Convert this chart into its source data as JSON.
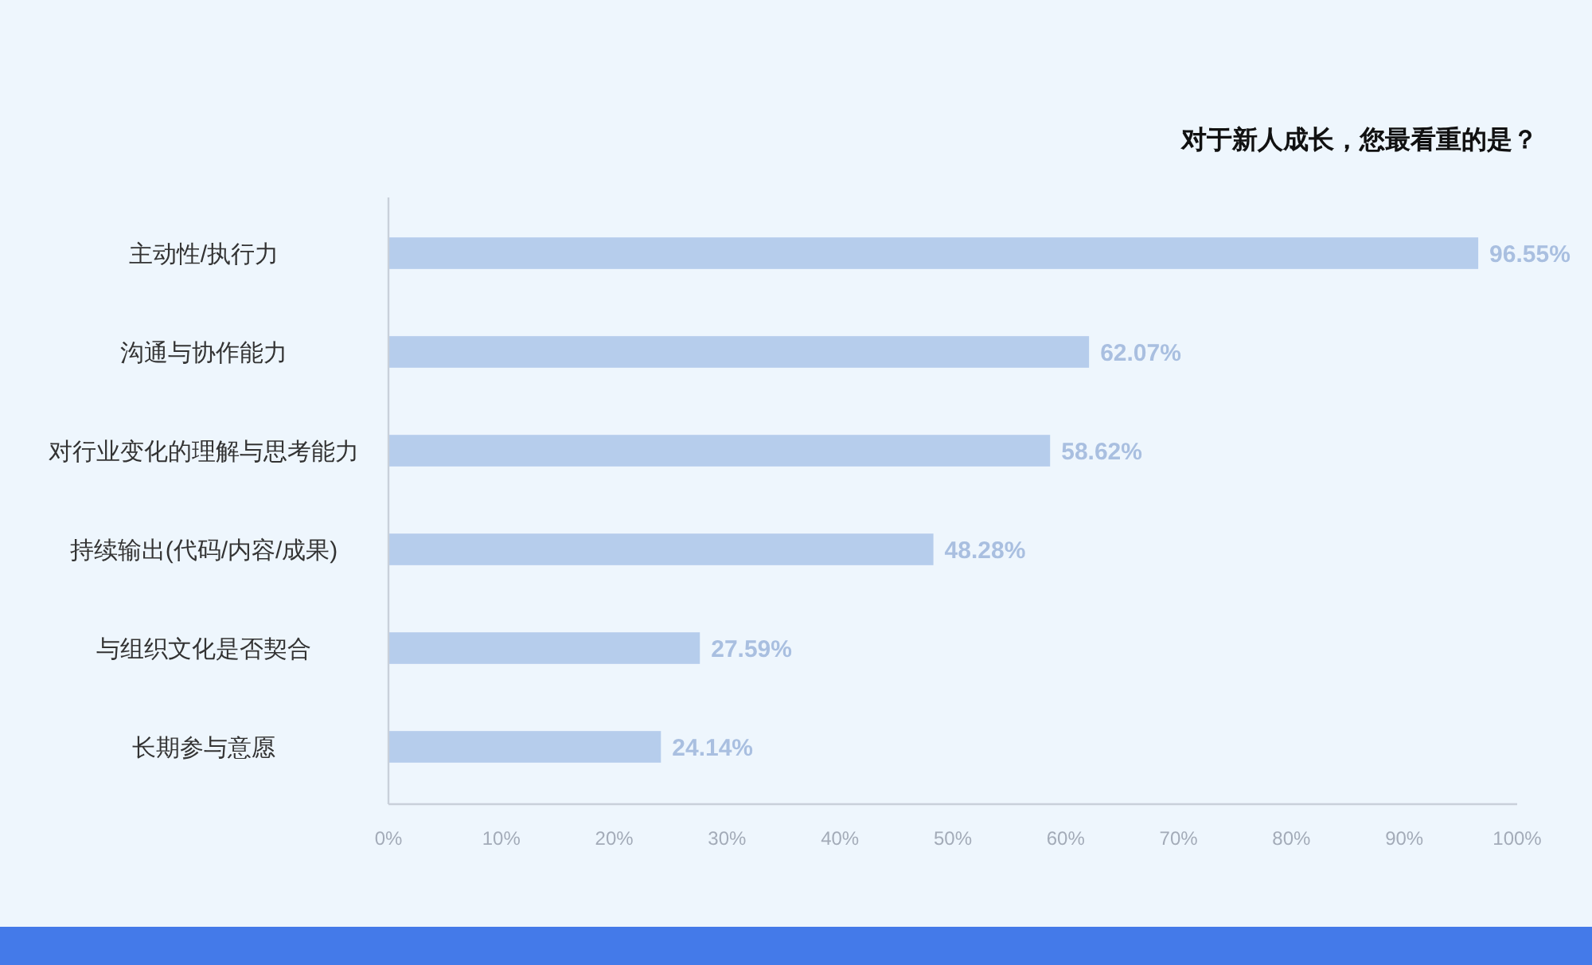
{
  "chart_data": {
    "type": "bar",
    "title": "对于新人成长，您最看重的是？",
    "orientation": "horizontal",
    "categories": [
      "主动性/执行力",
      "沟通与协作能力",
      "对行业变化的理解与思考能力",
      "持续输出(代码/内容/成果)",
      "与组织文化是否契合",
      "长期参与意愿"
    ],
    "values": [
      96.55,
      62.07,
      58.62,
      48.28,
      27.59,
      24.14
    ],
    "color": "#b6cdec",
    "value_labels": [
      "96.55%",
      "62.07%",
      "58.62%",
      "48.28%",
      "27.59%",
      "24.14%"
    ],
    "xlim": [
      0,
      100
    ],
    "xticks": [
      {
        "value": 0,
        "label": "0%"
      },
      {
        "value": 10,
        "label": "10%"
      },
      {
        "value": 20,
        "label": "20%"
      },
      {
        "value": 30,
        "label": "30%"
      },
      {
        "value": 40,
        "label": "40%"
      },
      {
        "value": 50,
        "label": "50%"
      },
      {
        "value": 60,
        "label": "60%"
      },
      {
        "value": 70,
        "label": "70%"
      },
      {
        "value": 80,
        "label": "80%"
      },
      {
        "value": 90,
        "label": "90%"
      },
      {
        "value": 100,
        "label": "100%"
      }
    ]
  }
}
